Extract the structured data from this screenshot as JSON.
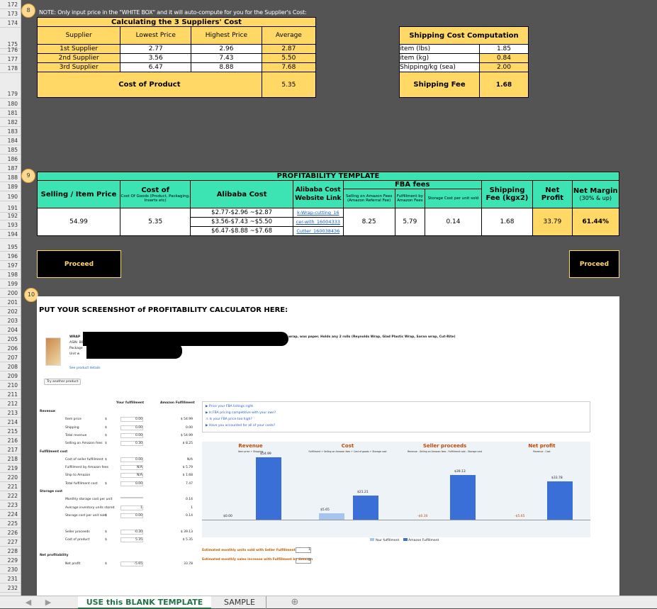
{
  "row_numbers": [
    "172",
    "173",
    "174",
    "175",
    "176",
    "177",
    "178",
    "179",
    "180",
    "181",
    "182",
    "183",
    "184",
    "185",
    "186",
    "187",
    "188",
    "189",
    "190",
    "191",
    "192",
    "193",
    "194",
    "195",
    "196",
    "197",
    "198",
    "199",
    "200",
    "201",
    "202",
    "203",
    "204",
    "205",
    "206",
    "207",
    "208",
    "209",
    "210",
    "211",
    "212",
    "213",
    "214",
    "215",
    "216",
    "217",
    "218",
    "219",
    "220",
    "221",
    "222",
    "223",
    "224",
    "225",
    "226",
    "227",
    "228",
    "229",
    "230",
    "231",
    "232"
  ],
  "badges": [
    "8",
    "9",
    "10"
  ],
  "note": "NOTE: Only input price in the \"WHITE BOX\" and it will auto-compute for you for the Supplier's Cost:",
  "suppliers": {
    "title": "Calculating the 3 Suppliers' Cost",
    "headers": [
      "Supplier",
      "Lowest Price",
      "Highest Price",
      "Average"
    ],
    "rows": [
      [
        "1st Supplier",
        "2.77",
        "2.96",
        "2.87"
      ],
      [
        "2nd Supplier",
        "3.56",
        "7.43",
        "5.50"
      ],
      [
        "3rd Supplier",
        "6.47",
        "8.88",
        "7.68"
      ]
    ],
    "cost_label": "Cost of Product",
    "cost_value": "5.35"
  },
  "shipping": {
    "title": "Shipping Cost Computation",
    "rows": [
      [
        "item (lbs)",
        "1.85"
      ],
      [
        "item (kg)",
        "0.84"
      ],
      [
        "Shipping/kg (sea)",
        "2.00"
      ]
    ],
    "fee_label": "Shipping Fee",
    "fee_value": "1.68"
  },
  "profit": {
    "title": "PROFITABILITY TEMPLATE",
    "h_selling": "Selling / Item Price",
    "h_cost": "Cost of",
    "h_cost_sub": "Cost Of Goods (Product, Packaging, Inserts etc)",
    "h_alibaba": "Alibaba Cost",
    "h_website": "Alibaba Cost Website Link",
    "h_fba": "FBA fees",
    "h_fba1": "Selling on Amazon Fees (Amazon Referral Fee)",
    "h_fba2": "Fulfillment by Amazon Fees",
    "h_fba3": "Storage Cost per unit sold",
    "h_ship": "Shipping Fee (kgx2)",
    "h_net": "Net Profit",
    "h_margin": "Net Margin",
    "h_margin_sub": "(30% & up)",
    "selling": "54.99",
    "cost": "5.35",
    "alibaba": [
      "$2.77-$2.96 ~$2.87",
      "$3.56-$7.43 ~$5.50",
      "$6.47-$8.88 ~$7.68"
    ],
    "links": [
      "k-Wrap-cutting_16",
      "cer-with_16004333",
      "Cutter_160038436"
    ],
    "fba1": "8.25",
    "fba2": "5.79",
    "fba3": "0.14",
    "ship": "1.68",
    "net": "33.79",
    "margin": "61.44%",
    "proceed_left": "Proceed",
    "proceed_right": "Proceed"
  },
  "screenshot": {
    "heading": "PUT YOUR SCREENSHOT of PROFITABILITY CALCULATOR HERE:",
    "product_title": "wrap, wax paper. Holds any 2 rolls (Reynolds Wrap, Glad Plastic Wrap, Saran wrap, Cut-Rite)",
    "product_lines": [
      "WRAP",
      "ASIN: B0",
      "Package",
      "Unit w"
    ],
    "see_details": "See product details",
    "try_another": "Try another product",
    "col_your": "Your fulfillment",
    "col_amazon": "Amazon Fulfillment",
    "rows": [
      [
        "Revenue",
        "",
        "",
        ""
      ],
      [
        "Item price",
        "$",
        "0.00",
        "$ 54.99"
      ],
      [
        "Shipping",
        "$",
        "0.00",
        "0.00"
      ],
      [
        "Total revenue",
        "$",
        "0.00",
        "$ 54.99"
      ],
      [
        "Selling on Amazon fees",
        "$",
        "0.30",
        "$ 8.25"
      ],
      [
        "Fulfillment cost",
        "",
        "",
        ""
      ],
      [
        "Cost of seller fulfillment",
        "$",
        "0.00",
        "N/A"
      ],
      [
        "Fulfillment by Amazon fees",
        "",
        "N/A",
        "$ 5.79"
      ],
      [
        "Ship to Amazon",
        "",
        "N/A",
        "$ 1.68"
      ],
      [
        "Total fulfillment cost",
        "$",
        "0.00",
        "7.47"
      ],
      [
        "Storage cost",
        "",
        "",
        ""
      ],
      [
        "Monthly storage cost per unit",
        "",
        "",
        "0.14"
      ],
      [
        "Average inventory units stored",
        "",
        "1",
        "1"
      ],
      [
        "Storage cost per unit sold",
        "$",
        "0.00",
        "0.14"
      ],
      [
        "",
        "",
        "",
        ""
      ],
      [
        "Seller proceeds",
        "$",
        "-0.30",
        "$ 39.13"
      ],
      [
        "Cost of product",
        "$",
        "5.35",
        "$ 5.35"
      ],
      [
        "",
        "",
        "",
        ""
      ],
      [
        "Net profitability",
        "",
        "",
        ""
      ],
      [
        "Net profit",
        "$",
        "-5.65",
        "33.78"
      ]
    ],
    "tips": [
      "Price your FBA listings right",
      "Is FBA pricing competitive with your own?",
      "Is your FBA price too high?",
      "Have you accounted for all of your costs?"
    ],
    "charts": [
      {
        "title": "Revenue",
        "sub": "Item price + Shipping",
        "your": "$0.00",
        "amazon": "$54.99"
      },
      {
        "title": "Cost",
        "sub": "Fulfillment + Selling on Amazon fees + Cost of goods + Storage cost",
        "your": "$5.65",
        "amazon": "$21.21"
      },
      {
        "title": "Seller proceeds",
        "sub": "Revenue - Selling on Amazon fees - Fulfillment cost - Storage cost",
        "your": "-$0.30",
        "amazon": "$39.13"
      },
      {
        "title": "Net profit",
        "sub": "Revenue - Cost",
        "your": "-$5.65",
        "amazon": "$33.78"
      }
    ],
    "legend_your": "Your fulfillment",
    "legend_amazon": "Amazon Fulfillment",
    "est1": "Estimated monthly units sold with Seller Fulfillment",
    "est2": "Estimated monthly sales increase with Fulfillment by Amazon",
    "est1_val": "1",
    "est2_val": "0"
  },
  "tabs": [
    "USE this BLANK TEMPLATE",
    "SAMPLE"
  ],
  "colors": {
    "yellow": "#ffd866",
    "teal": "#3ce4b3",
    "tab_green": "#217346",
    "bar_blue": "#3a6fd8"
  }
}
